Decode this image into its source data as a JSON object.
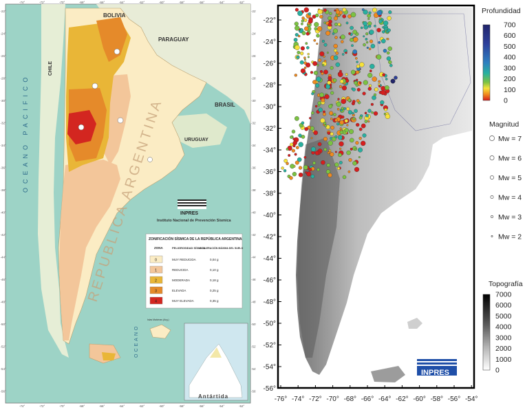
{
  "left_map": {
    "countries": {
      "bolivia": "BOLIVIA",
      "paraguay": "PARAGUAY",
      "brasil": "BRASIL",
      "uruguay": "URUGUAY",
      "chile": "CHILE"
    },
    "ocean_pacific": "OCEANO PACIFICO",
    "ocean_atlantic": "OCEANO",
    "country_watermark": "REPUBLICA ARGENTINA",
    "islands": "Islas Malvinas (Arg.)",
    "antarctica": "Antártida",
    "logo_text": "INPRES",
    "institute": "Instituto Nacional de Prevención Sísmica",
    "latitude_ticks": [
      "-22°",
      "-24°",
      "-26°",
      "-28°",
      "-30°",
      "-32°",
      "-34°",
      "-36°",
      "-38°",
      "-40°",
      "-42°",
      "-44°",
      "-46°",
      "-48°",
      "-50°",
      "-52°",
      "-54°",
      "-56°"
    ],
    "longitude_ticks": [
      "-74°",
      "-72°",
      "-70°",
      "-68°",
      "-66°",
      "-64°",
      "-62°",
      "-60°",
      "-58°",
      "-56°",
      "-54°",
      "-52°"
    ],
    "legend": {
      "title": "ZONIFICACIÓN SÍSMICA DE LA REPÚBLICA ARGENTINA",
      "col_zone": "ZONA",
      "col_hazard": "PELIGROSIDAD SÍSMICA",
      "col_accel": "ACELERACIÓN MÁXIMA DEL SUELO",
      "rows": [
        {
          "zone": "0",
          "hazard": "MUY REDUCIDA",
          "accel": "0,04 g",
          "color": "#fbecc4"
        },
        {
          "zone": "1",
          "hazard": "REDUCIDA",
          "accel": "0,10 g",
          "color": "#f3c69a"
        },
        {
          "zone": "2",
          "hazard": "MODERADA",
          "accel": "0,18 g",
          "color": "#e9b637"
        },
        {
          "zone": "3",
          "hazard": "ELEVADA",
          "accel": "0,25 g",
          "color": "#e58a2a"
        },
        {
          "zone": "4",
          "hazard": "MUY ELEVADA",
          "accel": "0,35 g",
          "color": "#d32620"
        }
      ]
    }
  },
  "right_map": {
    "depth_title": "Profundidad",
    "depth_ticks": [
      "700",
      "600",
      "500",
      "400",
      "300",
      "200",
      "100",
      "0"
    ],
    "magnitude_title": "Magnitud",
    "magnitudes": [
      "Mw = 7",
      "Mw = 6",
      "Mw = 5",
      "Mw = 4",
      "Mw = 3",
      "Mw = 2"
    ],
    "topo_title": "Topografía",
    "topo_ticks": [
      "7000",
      "6000",
      "5000",
      "4000",
      "3000",
      "2000",
      "1000",
      "0"
    ],
    "lat_ticks": [
      "-22°",
      "-24°",
      "-26°",
      "-28°",
      "-30°",
      "-32°",
      "-34°",
      "-36°",
      "-38°",
      "-40°",
      "-42°",
      "-44°",
      "-46°",
      "-48°",
      "-50°",
      "-52°",
      "-54°",
      "-56°"
    ],
    "lon_ticks": [
      "-76°",
      "-74°",
      "-72°",
      "-70°",
      "-68°",
      "-66°",
      "-64°",
      "-62°",
      "-60°",
      "-58°",
      "-56°",
      "-54°"
    ],
    "logo_text": "INPRES"
  }
}
